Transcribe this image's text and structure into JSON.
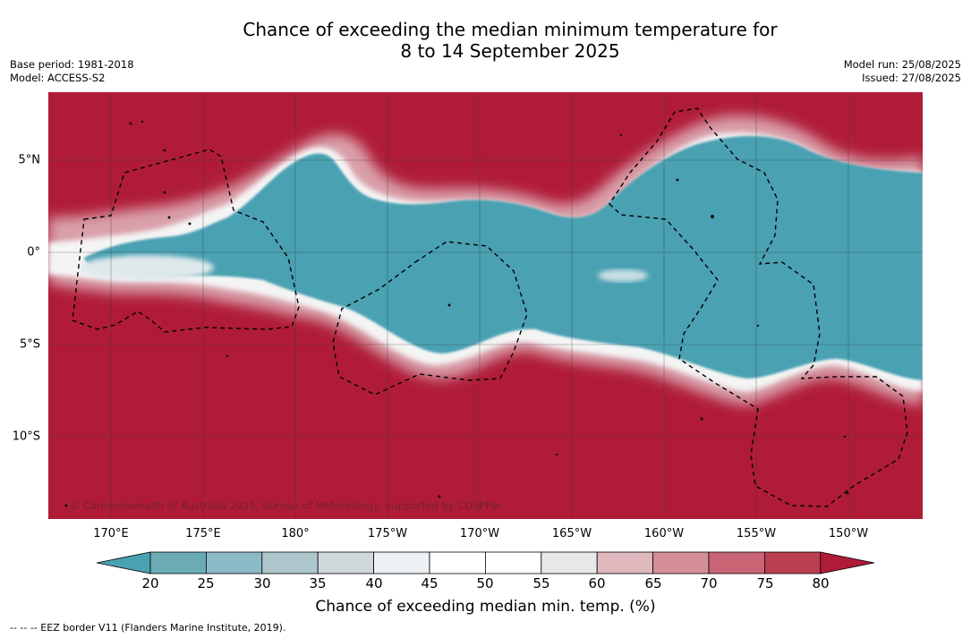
{
  "title": {
    "line1": "Chance of exceeding the median minimum temperature for",
    "line2": "8 to 14 September 2025"
  },
  "meta_left": {
    "base_period": "Base period: 1981-2018",
    "model": "Model: ACCESS-S2"
  },
  "meta_right": {
    "model_run": "Model run: 25/08/2025",
    "issued": "Issued: 27/08/2025"
  },
  "map": {
    "longitude_ticks": [
      "170°E",
      "175°E",
      "180°",
      "175°W",
      "170°W",
      "165°W",
      "160°W",
      "155°W",
      "150°W"
    ],
    "latitude_ticks": [
      "5°N",
      "0°",
      "5°S",
      "10°S"
    ],
    "credit": "© Commonwealth of Australia 2025, Bureau of Meteorology, supported by COSPPac",
    "colors": {
      "above": "#b01c38",
      "below": "#4aa1b2",
      "neutral": "#ffffff",
      "eez_border": "#000000",
      "grid": "#333333"
    }
  },
  "colorbar": {
    "ticks": [
      "20",
      "25",
      "30",
      "35",
      "40",
      "45",
      "50",
      "55",
      "60",
      "65",
      "70",
      "75",
      "80"
    ],
    "colors": [
      "#4aa1b2",
      "#6aabb6",
      "#8cbac6",
      "#adc7cc",
      "#d1d8db",
      "#edf1f4",
      "#ffffff",
      "#ffffff",
      "#e8e8e8",
      "#dfb8be",
      "#d38e98",
      "#c86473",
      "#bc3e51",
      "#b01c38"
    ],
    "label": "Chance of exceeding median min. temp. (%)"
  },
  "footnote": "--  --  -- EEZ border V11 (Flanders Marine Institute, 2019)."
}
